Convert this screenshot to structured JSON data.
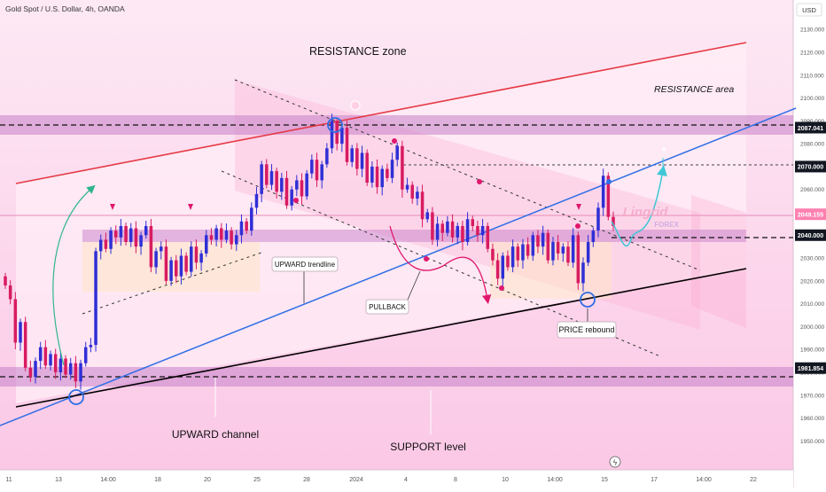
{
  "header": {
    "symbol_title": "Gold Spot / U.S. Dollar, 4h, OANDA",
    "currency": "USD"
  },
  "colors": {
    "background": "#fdd7ee",
    "bull_candle": "#2f2fd6",
    "bear_candle": "#d81b60",
    "resistance_line": "#e53945",
    "trendline": "#2f6ee6",
    "support_line": "#000000",
    "zone_band": "#c77fc9",
    "accent_magenta": "#e0186e",
    "projection_cyan": "#3ec7d6",
    "current_price_label": "#ff80b0"
  },
  "annotations": {
    "resistance_zone": "RESISTANCE zone",
    "resistance_area": "RESISTANCE area",
    "upward_trendline": "UPWARD trendline",
    "pullback": "PULLBACK",
    "price_rebound": "PRICE rebound",
    "upward_channel": "UPWARD channel",
    "support_level": "SUPPORT level",
    "watermark_main": "Lingrid",
    "watermark_sub": "FOREX"
  },
  "chart_data": {
    "type": "candlestick",
    "title": "Gold Spot / U.S. Dollar, 4h, OANDA",
    "y_unit": "USD",
    "ylim": [
      1942,
      2139
    ],
    "y_ticks": [
      1950,
      1960,
      1970,
      1980,
      1990,
      2000,
      2010,
      2020,
      2030,
      2040,
      2050,
      2060,
      2070,
      2080,
      2090,
      2100,
      2110,
      2120,
      2130
    ],
    "y_tick_labels": [
      "1950.000",
      "1960.000",
      "1970.000",
      "1980.000",
      "1990.000",
      "2000.000",
      "2010.000",
      "2020.000",
      "2030.000",
      "2040.000",
      "2050.000",
      "2060.000",
      "2070.000",
      "2080.000",
      "2090.000",
      "2100.000",
      "2110.000",
      "2120.000",
      "2130.000"
    ],
    "x_tick_labels": [
      "11",
      "13",
      "14:00",
      "18",
      "20",
      "25",
      "28",
      "2024",
      "4",
      "8",
      "10",
      "14:00",
      "15",
      "17",
      "14:00",
      "22"
    ],
    "price_labels": [
      {
        "text": "2087.041",
        "value": 2087.041,
        "style": "dark"
      },
      {
        "text": "2070.000",
        "value": 2070.0,
        "style": "dark"
      },
      {
        "text": "2049.155",
        "value": 2049.155,
        "style": "current"
      },
      {
        "text": "2040.000",
        "value": 2040.0,
        "style": "dark"
      },
      {
        "text": "1981.854",
        "value": 1981.854,
        "style": "dark"
      }
    ],
    "levels": {
      "resistance": 2087.041,
      "target": 2070.0,
      "current": 2049.155,
      "support_zone": 2040.0,
      "support": 1981.854
    },
    "candle_closes": [
      2018,
      2012,
      1993,
      2002,
      1982,
      1978,
      1985,
      1991,
      1983,
      1988,
      1980,
      1986,
      1979,
      1984,
      1976,
      1984,
      1991,
      1992,
      2033,
      2038,
      2034,
      2042,
      2039,
      2044,
      2037,
      2043,
      2035,
      2040,
      2044,
      2026,
      2033,
      2035,
      2020,
      2029,
      2022,
      2031,
      2024,
      2035,
      2028,
      2032,
      2040,
      2038,
      2043,
      2038,
      2042,
      2036,
      2040,
      2046,
      2042,
      2052,
      2058,
      2071,
      2062,
      2068,
      2059,
      2065,
      2053,
      2060,
      2064,
      2057,
      2067,
      2073,
      2064,
      2071,
      2078,
      2090,
      2080,
      2087,
      2072,
      2078,
      2069,
      2076,
      2063,
      2070,
      2061,
      2069,
      2065,
      2073,
      2079,
      2060,
      2062,
      2056,
      2059,
      2047,
      2050,
      2038,
      2045,
      2041,
      2046,
      2039,
      2044,
      2037,
      2047,
      2044,
      2040,
      2044,
      2034,
      2029,
      2021,
      2031,
      2026,
      2035,
      2029,
      2036,
      2031,
      2040,
      2035,
      2041,
      2029,
      2037,
      2032,
      2035,
      2028,
      2040,
      2019,
      2028,
      2037,
      2042,
      2052,
      2066,
      2048,
      2044
    ],
    "projection_path": [
      2047,
      2038,
      2044,
      2070
    ]
  }
}
